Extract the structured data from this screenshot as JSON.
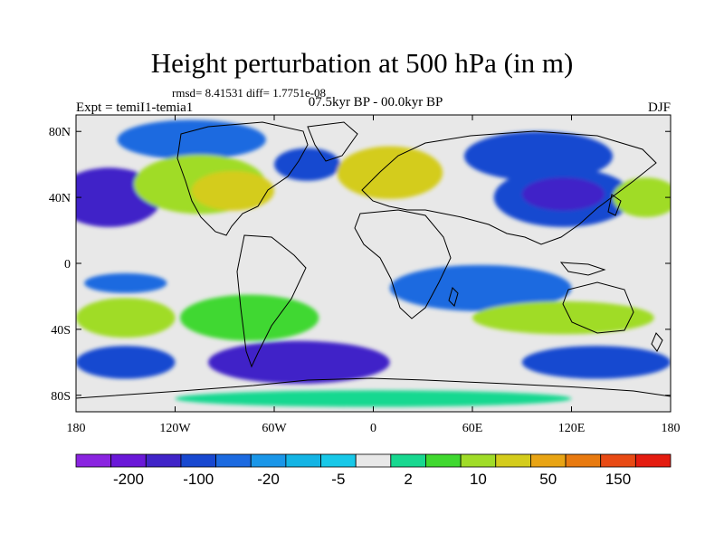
{
  "figure": {
    "title": "Height perturbation at 500 hPa (in m)",
    "stats": "rmsd= 8.41531 diff= 1.7751e-08",
    "experiment": "Expt = temiI1-temia1",
    "period": "07.5kyr BP - 00.0kyr BP",
    "season": "DJF"
  },
  "chart_data": {
    "type": "heatmap",
    "subtype": "filled contour map",
    "variable": "500 hPa geopotential height perturbation",
    "units": "m",
    "xlim": [
      -180,
      180
    ],
    "ylim": [
      -90,
      90
    ],
    "x_ticks": [
      {
        "value": -180,
        "label": "180"
      },
      {
        "value": -120,
        "label": "120W"
      },
      {
        "value": -60,
        "label": "60W"
      },
      {
        "value": 0,
        "label": "0"
      },
      {
        "value": 60,
        "label": "60E"
      },
      {
        "value": 120,
        "label": "120E"
      },
      {
        "value": 180,
        "label": "180"
      }
    ],
    "y_ticks": [
      {
        "value": 80,
        "label": "80N"
      },
      {
        "value": 40,
        "label": "40N"
      },
      {
        "value": 0,
        "label": "0"
      },
      {
        "value": -40,
        "label": "40S"
      },
      {
        "value": -80,
        "label": "80S"
      }
    ],
    "colorbar": {
      "colors": [
        "#8a24e0",
        "#6a18d8",
        "#4024c8",
        "#1848d0",
        "#1c6ae0",
        "#1a96e8",
        "#14b4e4",
        "#18c8e8",
        "#e8e8e8",
        "#18d890",
        "#40d830",
        "#a0dc28",
        "#d4cc1c",
        "#e8a414",
        "#e87a10",
        "#e84a14",
        "#e41c10"
      ],
      "labels": [
        "-200",
        "-100",
        "-20",
        "-5",
        "2",
        "10",
        "50",
        "150"
      ]
    },
    "regions": [
      {
        "name": "north-pacific-low",
        "lon": -160,
        "lat": 40,
        "rx": 32,
        "ry": 18,
        "value": -50
      },
      {
        "name": "north-pacific-low-core",
        "lon": -160,
        "lat": 38,
        "rx": 20,
        "ry": 11,
        "value": -80
      },
      {
        "name": "arctic-canada-low",
        "lon": -110,
        "lat": 75,
        "rx": 45,
        "ry": 12,
        "value": -10
      },
      {
        "name": "north-america-high",
        "lon": -105,
        "lat": 48,
        "rx": 40,
        "ry": 18,
        "value": 20
      },
      {
        "name": "north-america-high-core",
        "lon": -85,
        "lat": 44,
        "rx": 25,
        "ry": 12,
        "value": 40
      },
      {
        "name": "north-atlantic-low",
        "lon": -40,
        "lat": 60,
        "rx": 20,
        "ry": 10,
        "value": -30
      },
      {
        "name": "europe-high",
        "lon": 10,
        "lat": 55,
        "rx": 32,
        "ry": 16,
        "value": 25
      },
      {
        "name": "siberia-low",
        "lon": 100,
        "lat": 65,
        "rx": 45,
        "ry": 15,
        "value": -30
      },
      {
        "name": "east-asia-low",
        "lon": 115,
        "lat": 40,
        "rx": 42,
        "ry": 18,
        "value": -40
      },
      {
        "name": "east-asia-low-core",
        "lon": 115,
        "lat": 42,
        "rx": 25,
        "ry": 10,
        "value": -60
      },
      {
        "name": "west-pacific-high",
        "lon": 165,
        "lat": 40,
        "rx": 20,
        "ry": 12,
        "value": 20
      },
      {
        "name": "tropical-south-pacific-low",
        "lon": -150,
        "lat": -12,
        "rx": 25,
        "ry": 6,
        "value": -10
      },
      {
        "name": "south-america-high",
        "lon": -75,
        "lat": -33,
        "rx": 42,
        "ry": 14,
        "value": 10
      },
      {
        "name": "south-pacific-high",
        "lon": -150,
        "lat": -33,
        "rx": 30,
        "ry": 12,
        "value": 15
      },
      {
        "name": "south-atlantic-low",
        "lon": -45,
        "lat": -60,
        "rx": 55,
        "ry": 13,
        "value": -50
      },
      {
        "name": "south-pacific-low",
        "lon": -150,
        "lat": -60,
        "rx": 30,
        "ry": 10,
        "value": -30
      },
      {
        "name": "indian-ocean-low",
        "lon": 65,
        "lat": -15,
        "rx": 55,
        "ry": 14,
        "value": -10
      },
      {
        "name": "southern-indian-high",
        "lon": 115,
        "lat": -33,
        "rx": 55,
        "ry": 10,
        "value": 15
      },
      {
        "name": "southern-ocean-low",
        "lon": 135,
        "lat": -60,
        "rx": 45,
        "ry": 10,
        "value": -30
      },
      {
        "name": "antarctic-high",
        "lon": 0,
        "lat": -82,
        "rx": 120,
        "ry": 5,
        "value": 5
      }
    ]
  }
}
